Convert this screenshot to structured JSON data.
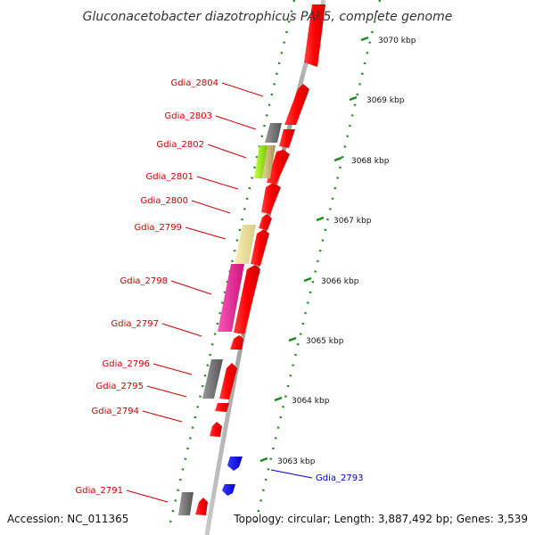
{
  "title": "Gluconacetobacter diazotrophicus PAl 5, complete genome",
  "footer": {
    "accession": "Accession: NC_011365",
    "topology": "Topology: circular; Length: 3,887,492 bp; Genes: 3,539"
  },
  "colors": {
    "forward_cds": "#ff0000",
    "reverse_cds": "#0000ff",
    "label_red": "#cc0000",
    "label_blue": "#0000cc",
    "gray_feature": "#777777",
    "yellow_feature": "#eee4a0",
    "magenta_feature": "#ee2a9a",
    "lime_feature": "#99ee22",
    "tan_feature": "#c8b470",
    "tick_green": "#1a8a1a",
    "backbone": "#999999"
  },
  "kbp_ticks": [
    "3070 kbp",
    "3069 kbp",
    "3068 kbp",
    "3067 kbp",
    "3066 kbp",
    "3065 kbp",
    "3064 kbp",
    "3063 kbp"
  ],
  "gene_labels": [
    {
      "text": "Gdia_2804",
      "color": "red"
    },
    {
      "text": "Gdia_2803",
      "color": "red"
    },
    {
      "text": "Gdia_2802",
      "color": "red"
    },
    {
      "text": "Gdia_2801",
      "color": "red"
    },
    {
      "text": "Gdia_2800",
      "color": "red"
    },
    {
      "text": "Gdia_2799",
      "color": "red"
    },
    {
      "text": "Gdia_2798",
      "color": "red"
    },
    {
      "text": "Gdia_2797",
      "color": "red"
    },
    {
      "text": "Gdia_2796",
      "color": "red"
    },
    {
      "text": "Gdia_2795",
      "color": "red"
    },
    {
      "text": "Gdia_2794",
      "color": "red"
    },
    {
      "text": "Gdia_2791",
      "color": "red"
    },
    {
      "text": "Gdia_2793",
      "color": "blue"
    }
  ]
}
